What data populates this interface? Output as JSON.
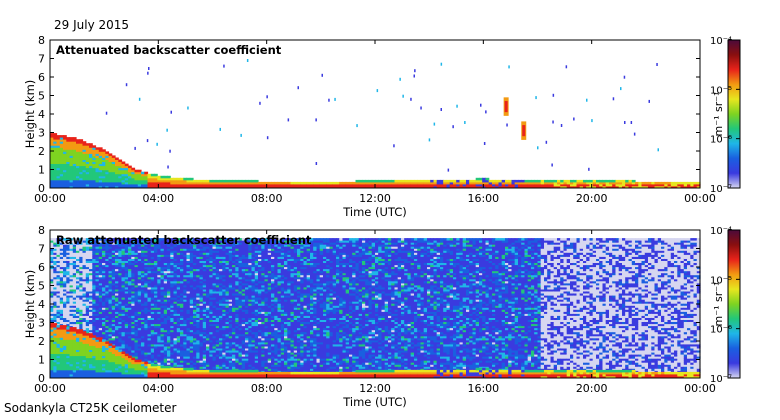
{
  "figure": {
    "date": "29 July 2015",
    "footer": "Sodankyla CT25K ceilometer"
  },
  "colors": {
    "scale": [
      "#d6d6f0",
      "#3a3adf",
      "#1a5fe0",
      "#1fb6e8",
      "#22c77a",
      "#7ed321",
      "#e7e61f",
      "#f39a12",
      "#e8231a",
      "#8a0f0f",
      "#4b0a3a"
    ]
  },
  "chart_data": [
    {
      "type": "heatmap",
      "title": "Attenuated backscatter coefficient",
      "xlabel": "Time (UTC)",
      "ylabel": "Height (km)",
      "x_ticks": [
        "00:00",
        "04:00",
        "08:00",
        "12:00",
        "16:00",
        "20:00",
        "00:00"
      ],
      "y_ticks": [
        "0",
        "1",
        "2",
        "3",
        "4",
        "5",
        "6",
        "7",
        "8"
      ],
      "xlim_hours": [
        0,
        24
      ],
      "ylim": [
        0,
        8
      ],
      "colorbar": {
        "label": "m⁻¹ sr⁻¹",
        "ticks": [
          "10⁻⁴",
          "10⁻⁵",
          "10⁻⁶",
          "10⁻⁷"
        ],
        "log": true,
        "range": [
          1e-07,
          0.0001
        ]
      },
      "boundary_layer_km": [
        [
          0,
          2.9
        ],
        [
          1,
          2.6
        ],
        [
          2,
          2.0
        ],
        [
          3,
          1.0
        ],
        [
          4,
          0.6
        ],
        [
          6,
          0.35
        ],
        [
          10,
          0.3
        ],
        [
          14,
          0.4
        ],
        [
          16,
          0.45
        ],
        [
          17.8,
          0.35
        ],
        [
          20,
          0.35
        ],
        [
          24,
          0.3
        ]
      ],
      "cloud_features": [
        {
          "time": 16.85,
          "height_km": 4.4
        },
        {
          "time": 17.5,
          "height_km": 3.1
        }
      ]
    },
    {
      "type": "heatmap",
      "title": "Raw attenuated backscatter coefficient",
      "xlabel": "Time (UTC)",
      "ylabel": "Height (km)",
      "x_ticks": [
        "00:00",
        "04:00",
        "08:00",
        "12:00",
        "16:00",
        "20:00",
        "00:00"
      ],
      "y_ticks": [
        "0",
        "1",
        "2",
        "3",
        "4",
        "5",
        "6",
        "7",
        "8"
      ],
      "xlim_hours": [
        0,
        24
      ],
      "ylim": [
        0,
        8
      ],
      "colorbar": {
        "label": "m⁻¹ sr⁻¹",
        "ticks": [
          "10⁻⁴",
          "10⁻⁵",
          "10⁻⁶",
          "10⁻⁷"
        ],
        "log": true,
        "range": [
          1e-07,
          0.0001
        ]
      },
      "noise_top_km": 7.5,
      "noise_decrease_after_hour": 18
    }
  ]
}
